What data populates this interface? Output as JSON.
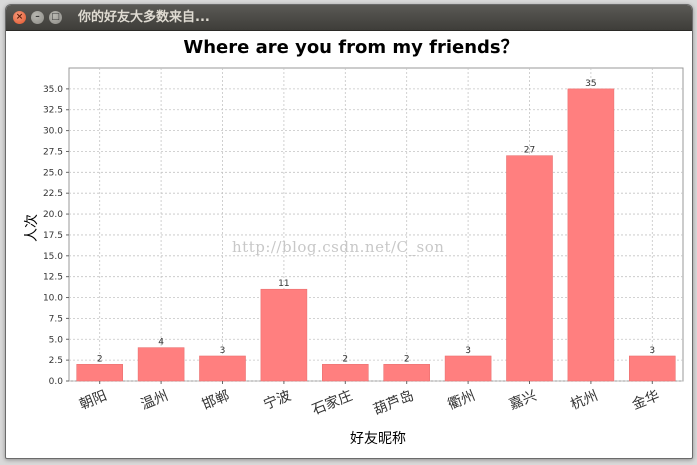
{
  "window": {
    "title": "你的好友大多数来自...",
    "close_icon": "close-icon",
    "minimize_icon": "minimize-icon",
    "maximize_icon": "maximize-icon"
  },
  "watermark": "http://blog.csdn.net/C_son",
  "colors": {
    "bar": "#ff7f7f",
    "titlebar": "#4a4945",
    "grid": "#c4c4c4"
  },
  "chart_data": {
    "type": "bar",
    "title": "Where are you from my friends？",
    "xlabel": "好友昵称",
    "ylabel": "人次",
    "categories": [
      "朝阳",
      "温州",
      "邯郸",
      "宁波",
      "石家庄",
      "葫芦岛",
      "衢州",
      "嘉兴",
      "杭州",
      "金华"
    ],
    "values": [
      2,
      4,
      3,
      11,
      2,
      2,
      3,
      27,
      35,
      3
    ],
    "ylim": [
      0,
      37.5
    ],
    "yticks": [
      "0.0",
      "2.5",
      "5.0",
      "7.5",
      "10.0",
      "12.5",
      "15.0",
      "17.5",
      "20.0",
      "22.5",
      "25.0",
      "27.5",
      "30.0",
      "32.5",
      "35.0"
    ],
    "grid": true,
    "legend": "none"
  }
}
